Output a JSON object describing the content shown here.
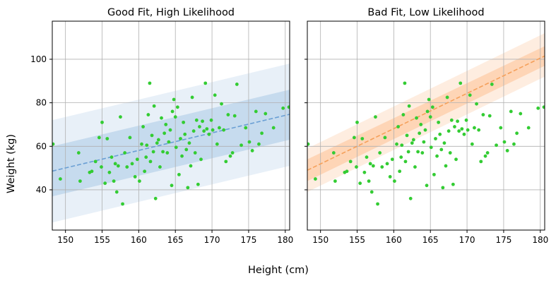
{
  "figure": {
    "xlabel": "Height (cm)",
    "ylabel": "Weight (kg)"
  },
  "chart_data": [
    {
      "type": "scatter",
      "title": "Good Fit, High Likelihood",
      "xlim": [
        148.2,
        180.6
      ],
      "ylim": [
        21.5,
        117.5
      ],
      "xticks": [
        150,
        155,
        160,
        165,
        170,
        175,
        180
      ],
      "yticks": [
        40,
        60,
        80,
        100
      ],
      "show_y_tick_labels": true,
      "grid": true,
      "fit_line": {
        "x": [
          148.2,
          180.6
        ],
        "y": [
          48.6,
          74.7
        ],
        "style": "dashed"
      },
      "band_inner": {
        "lower": [
          37.0,
          63.0
        ],
        "upper": [
          60.0,
          86.0
        ]
      },
      "band_outer": {
        "lower": [
          25.0,
          51.0
        ],
        "upper": [
          72.0,
          98.0
        ]
      },
      "colors": {
        "points": "#33cc33",
        "line": "#6a9fd4",
        "band_inner": "#b3cfe8",
        "band_outer": "#dce8f4"
      }
    },
    {
      "type": "scatter",
      "title": "Bad Fit, Low Likelihood",
      "xlim": [
        148.2,
        180.6
      ],
      "ylim": [
        21.5,
        117.5
      ],
      "xticks": [
        150,
        155,
        160,
        165,
        170,
        175,
        180
      ],
      "yticks": [
        40,
        60,
        80,
        100
      ],
      "show_y_tick_labels": false,
      "grid": true,
      "fit_line": {
        "x": [
          148.2,
          180.6
        ],
        "y": [
          49.0,
          101.5
        ],
        "style": "dashed"
      },
      "band_inner": {
        "lower": [
          44.0,
          97.0
        ],
        "upper": [
          54.0,
          106.0
        ]
      },
      "band_outer": {
        "lower": [
          39.0,
          92.0
        ],
        "upper": [
          59.0,
          112.0
        ]
      },
      "colors": {
        "points": "#33cc33",
        "line": "#f5a05a",
        "band_inner": "#fdc79f",
        "band_outer": "#fde3cf"
      }
    }
  ],
  "scatter_points": {
    "x": [
      148.3,
      149.3,
      151.8,
      152.0,
      153.3,
      153.6,
      154.1,
      154.6,
      154.9,
      155.0,
      155.4,
      155.7,
      156.0,
      156.3,
      156.6,
      156.8,
      157.0,
      157.2,
      157.5,
      157.8,
      158.1,
      158.4,
      158.8,
      159.1,
      159.5,
      159.8,
      160.1,
      160.4,
      160.6,
      160.8,
      161.0,
      161.1,
      161.3,
      161.5,
      161.6,
      161.8,
      162.0,
      162.1,
      162.3,
      162.5,
      162.7,
      162.9,
      163.1,
      163.3,
      163.5,
      163.7,
      163.9,
      164.1,
      164.3,
      164.5,
      164.6,
      164.8,
      165.0,
      165.1,
      165.3,
      165.5,
      165.7,
      165.9,
      166.1,
      166.3,
      166.5,
      166.7,
      166.9,
      167.1,
      167.3,
      167.5,
      167.7,
      167.9,
      168.1,
      168.3,
      168.5,
      168.7,
      168.9,
      169.1,
      169.3,
      169.6,
      169.9,
      170.1,
      170.4,
      170.7,
      171.0,
      171.3,
      171.6,
      171.9,
      172.2,
      172.5,
      172.8,
      173.1,
      173.4,
      174.0,
      174.6,
      175.1,
      175.5,
      176.0,
      176.4,
      176.8,
      177.3,
      178.4,
      179.7,
      180.5
    ],
    "y": [
      61.0,
      45.0,
      57.0,
      44.0,
      48.0,
      48.5,
      53.0,
      64.0,
      50.5,
      71.0,
      43.0,
      63.5,
      48.0,
      55.0,
      44.0,
      52.0,
      39.0,
      51.0,
      73.5,
      33.5,
      57.0,
      50.5,
      64.0,
      52.0,
      46.0,
      54.0,
      44.0,
      61.0,
      69.0,
      48.5,
      55.0,
      60.5,
      74.5,
      89.0,
      53.0,
      65.0,
      57.5,
      78.5,
      36.0,
      61.5,
      63.0,
      50.5,
      73.0,
      57.5,
      66.0,
      70.0,
      57.0,
      62.0,
      67.5,
      42.0,
      76.0,
      81.5,
      73.5,
      59.5,
      78.0,
      47.0,
      63.5,
      55.5,
      71.0,
      65.5,
      58.5,
      41.0,
      61.5,
      51.0,
      82.5,
      67.0,
      57.0,
      72.0,
      42.5,
      69.0,
      54.0,
      71.5,
      67.0,
      89.0,
      68.0,
      65.5,
      72.0,
      67.5,
      83.5,
      61.0,
      68.5,
      79.5,
      67.5,
      53.0,
      74.5,
      55.5,
      57.0,
      74.0,
      88.5,
      60.5,
      68.5,
      62.0,
      58.0,
      76.0,
      61.0,
      66.0,
      75.0,
      68.5,
      77.5,
      78.0
    ]
  }
}
